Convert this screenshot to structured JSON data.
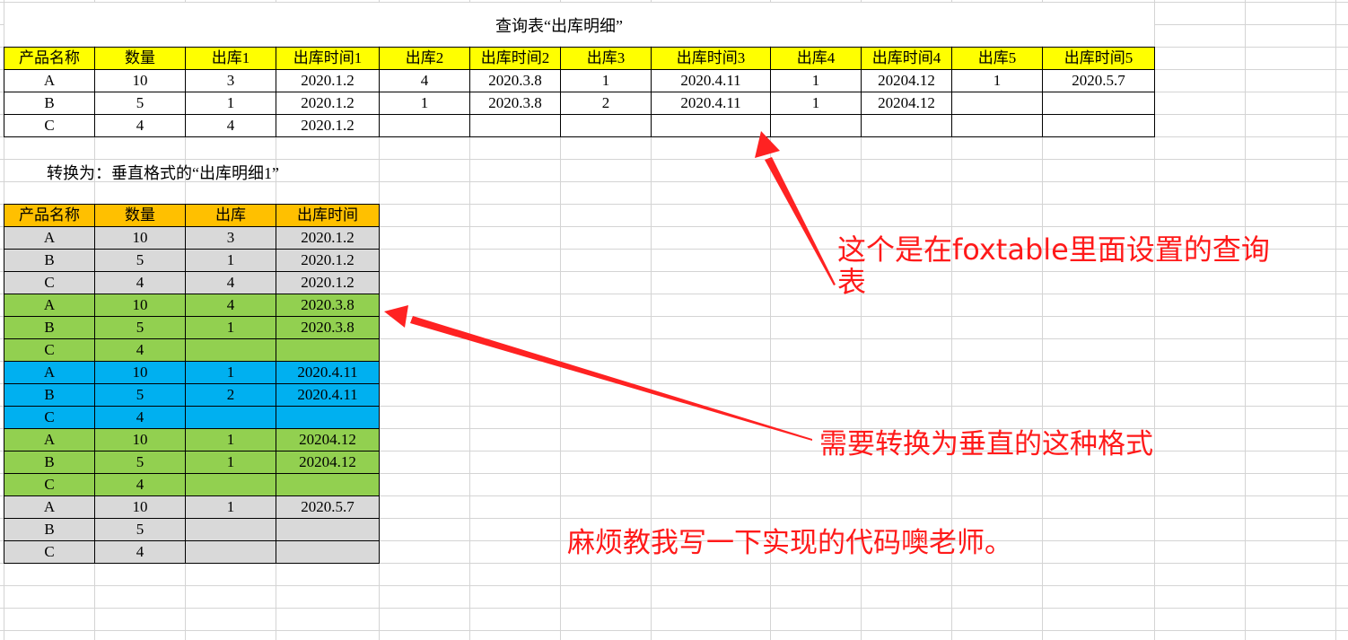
{
  "title": "查询表“出库明细”",
  "subtitle": "转换为：垂直格式的“出库明细1”",
  "colors": {
    "header_yellow": "#ffff00",
    "header_orange": "#ffc000",
    "gray": "#d9d9d9",
    "green": "#92d050",
    "blue": "#00b0f0",
    "annotation": "#ff1a1a"
  },
  "query_table": {
    "headers": [
      "产品名称",
      "数量",
      "出库1",
      "出库时间1",
      "出库2",
      "出库时间2",
      "出库3",
      "出库时间3",
      "出库4",
      "出库时间4",
      "出库5",
      "出库时间5"
    ],
    "rows": [
      [
        "A",
        "10",
        "3",
        "2020.1.2",
        "4",
        "2020.3.8",
        "1",
        "2020.4.11",
        "1",
        "20204.12",
        "1",
        "2020.5.7"
      ],
      [
        "B",
        "5",
        "1",
        "2020.1.2",
        "1",
        "2020.3.8",
        "2",
        "2020.4.11",
        "1",
        "20204.12",
        "",
        ""
      ],
      [
        "C",
        "4",
        "4",
        "2020.1.2",
        "",
        "",
        "",
        "",
        "",
        "",
        "",
        ""
      ]
    ]
  },
  "vertical_table": {
    "headers": [
      "产品名称",
      "数量",
      "出库",
      "出库时间"
    ],
    "rows": [
      {
        "color": "gray",
        "cells": [
          "A",
          "10",
          "3",
          "2020.1.2"
        ]
      },
      {
        "color": "gray",
        "cells": [
          "B",
          "5",
          "1",
          "2020.1.2"
        ]
      },
      {
        "color": "gray",
        "cells": [
          "C",
          "4",
          "4",
          "2020.1.2"
        ]
      },
      {
        "color": "green",
        "cells": [
          "A",
          "10",
          "4",
          "2020.3.8"
        ]
      },
      {
        "color": "green",
        "cells": [
          "B",
          "5",
          "1",
          "2020.3.8"
        ]
      },
      {
        "color": "green",
        "cells": [
          "C",
          "4",
          "",
          ""
        ]
      },
      {
        "color": "blue",
        "cells": [
          "A",
          "10",
          "1",
          "2020.4.11"
        ]
      },
      {
        "color": "blue",
        "cells": [
          "B",
          "5",
          "2",
          "2020.4.11"
        ]
      },
      {
        "color": "blue",
        "cells": [
          "C",
          "4",
          "",
          ""
        ]
      },
      {
        "color": "green",
        "cells": [
          "A",
          "10",
          "1",
          "20204.12"
        ]
      },
      {
        "color": "green",
        "cells": [
          "B",
          "5",
          "1",
          "20204.12"
        ]
      },
      {
        "color": "green",
        "cells": [
          "C",
          "4",
          "",
          ""
        ]
      },
      {
        "color": "gray",
        "cells": [
          "A",
          "10",
          "1",
          "2020.5.7"
        ]
      },
      {
        "color": "gray",
        "cells": [
          "B",
          "5",
          "",
          ""
        ]
      },
      {
        "color": "gray",
        "cells": [
          "C",
          "4",
          "",
          ""
        ]
      }
    ]
  },
  "annotations": {
    "note1_line1": "这个是在foxtable里面设置的查询",
    "note1_line2": "表",
    "note2": "需要转换为垂直的这种格式",
    "note3": "麻烦教我写一下实现的代码噢老师。"
  }
}
